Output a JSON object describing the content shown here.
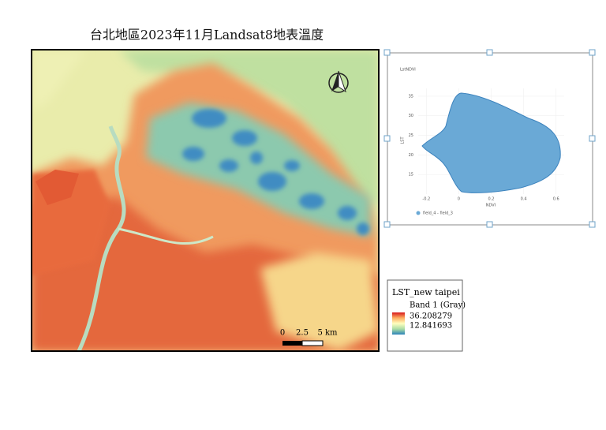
{
  "title": "台北地區2023年11月Landsat8地表溫度",
  "scale_bar": {
    "labels": [
      "0",
      "2.5",
      "5 km"
    ]
  },
  "legend": {
    "layer": "LST_new taipei",
    "band": "Band 1 (Gray)",
    "max": "36.208279",
    "min": "12.841693"
  },
  "inset_plot": {
    "title": "LstNDVI",
    "x_label": "NDVI",
    "y_label": "LST",
    "series_name": "field_4 - field_3",
    "xlim": [
      -0.25,
      0.65
    ],
    "xticks": [
      -0.2,
      0,
      0.2,
      0.4,
      0.6
    ],
    "ylim": [
      10,
      37
    ],
    "yticks": [
      35,
      30,
      25,
      20,
      15
    ]
  }
}
